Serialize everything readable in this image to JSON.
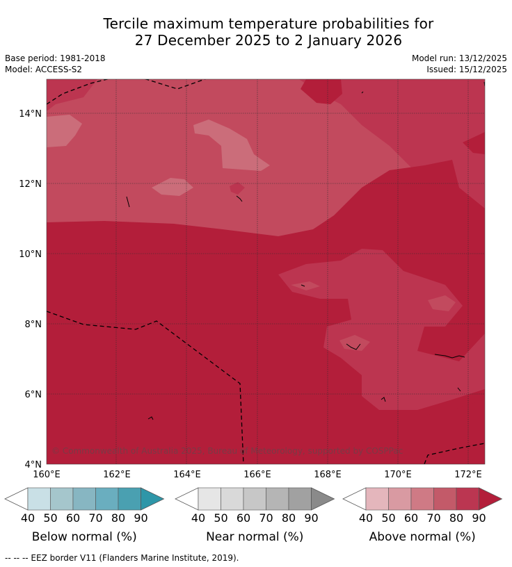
{
  "title": {
    "line1": "Tercile maximum temperature probabilities for",
    "line2": "27 December 2025 to 2 January 2026"
  },
  "meta": {
    "base_period": "Base period: 1981-2018",
    "model": "Model: ACCESS-S2",
    "model_run": "Model run: 13/12/2025",
    "issued": "Issued: 15/12/2025"
  },
  "map": {
    "lat_labels": [
      "14°N",
      "12°N",
      "10°N",
      "8°N",
      "6°N",
      "4°N"
    ],
    "lon_labels": [
      "160°E",
      "162°E",
      "164°E",
      "166°E",
      "168°E",
      "170°E",
      "172°E"
    ],
    "copyright": "© Commonwealth of Australia 2025, Bureau of Meteorology, supported by COSPPac",
    "colors": {
      "above_90": "#b31e3a",
      "above_80": "#bc3550",
      "above_70": "#c24a5e",
      "above_60": "#cb6d7a"
    }
  },
  "legends": [
    {
      "title": "Below normal (%)",
      "ticks": [
        "40",
        "50",
        "60",
        "70",
        "80",
        "90"
      ],
      "colors": [
        "#ffffff",
        "#c9e0e6",
        "#a5c6cc",
        "#87b6c2",
        "#6aaebf",
        "#4aa0b1",
        "#2e96a8"
      ]
    },
    {
      "title": "Near normal (%)",
      "ticks": [
        "40",
        "50",
        "60",
        "70",
        "80",
        "90"
      ],
      "colors": [
        "#ffffff",
        "#e6e6e6",
        "#d9d9d9",
        "#c7c7c7",
        "#b5b5b5",
        "#a1a1a1",
        "#8a8a8a"
      ]
    },
    {
      "title": "Above normal (%)",
      "ticks": [
        "40",
        "50",
        "60",
        "70",
        "80",
        "90"
      ],
      "colors": [
        "#ffffff",
        "#e4b6bc",
        "#d99aa2",
        "#cf7a85",
        "#c35a69",
        "#bb3651",
        "#b31e3a"
      ]
    }
  ],
  "footer": {
    "eez_note": "--  --  -- EEZ border V11 (Flanders Marine Institute, 2019)."
  }
}
